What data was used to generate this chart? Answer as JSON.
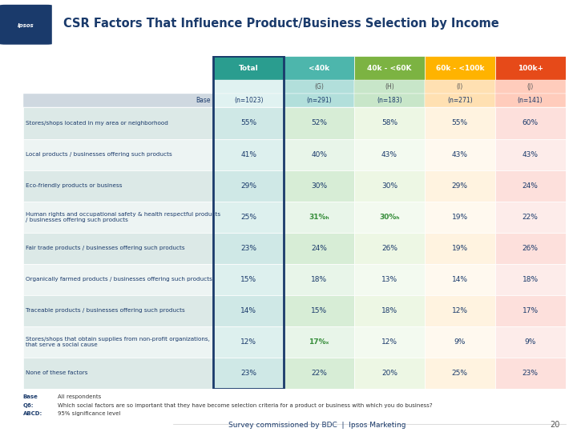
{
  "title": "CSR Factors That Influence Product/Business Selection by Income",
  "columns": [
    "Total",
    "<40k",
    "40k - <60K",
    "60k - <100k",
    "100k+"
  ],
  "col_letters": [
    "",
    "(G)",
    "(H)",
    "(I)",
    "(J)"
  ],
  "base_row": [
    "Base",
    "(n=1023)",
    "(n=291)",
    "(n=183)",
    "(n=271)",
    "(n=141)"
  ],
  "header_colors": [
    "#2a9d8f",
    "#4db6ac",
    "#8bc34a",
    "#ffb74d",
    "#e57373"
  ],
  "rows": [
    {
      "label": "Stores/shops located in my area or neighborhood",
      "values": [
        "55%",
        "52%",
        "58%",
        "55%",
        "60%"
      ],
      "special": []
    },
    {
      "label": "Local products / businesses offering such products",
      "values": [
        "41%",
        "40%",
        "43%",
        "43%",
        "43%"
      ],
      "special": []
    },
    {
      "label": "Eco-friendly products or business",
      "values": [
        "29%",
        "30%",
        "30%",
        "29%",
        "24%"
      ],
      "special": []
    },
    {
      "label": "Human rights and occupational safety & health respectful products\n/ businesses offering such products",
      "values": [
        "25%",
        "31%ₕ",
        "30%ₕ",
        "19%",
        "22%"
      ],
      "special": [
        1,
        2
      ]
    },
    {
      "label": "Fair trade products / businesses offering such products",
      "values": [
        "23%",
        "24%",
        "26%",
        "19%",
        "26%"
      ],
      "special": []
    },
    {
      "label": "Organically farmed products / businesses offering such products",
      "values": [
        "15%",
        "18%",
        "13%",
        "14%",
        "18%"
      ],
      "special": []
    },
    {
      "label": "Traceable products / businesses offering such products",
      "values": [
        "14%",
        "15%",
        "18%",
        "12%",
        "17%"
      ],
      "special": []
    },
    {
      "label": "Stores/shops that obtain supplies from non-profit organizations,\nthat serve a social cause",
      "values": [
        "12%",
        "17%ₓ",
        "12%",
        "9%",
        "9%"
      ],
      "special": [
        1
      ]
    },
    {
      "label": "None of these factors",
      "values": [
        "23%",
        "22%",
        "20%",
        "25%",
        "23%"
      ],
      "special": []
    }
  ],
  "row_bg_colors_even": [
    "#dce9e8",
    "#dce9e8"
  ],
  "row_bg_colors_odd": [
    "#f0f4f4",
    "#f0f4f4"
  ],
  "col_bg_colors": [
    "#e8f4f3",
    "#e8f5e9",
    "#fff3e0",
    "#fce4ec"
  ],
  "special_color": "#4caf50",
  "footer_text": "Survey commissioned by BDC  |  Ipsos Marketing",
  "page_num": "20",
  "footnote1": "Base",
  "footnote2": "Q6:",
  "footnote3": "ABCD:",
  "footnote1_text": "All respondents",
  "footnote2_text": "Which social factors are so important that they have become selection criteria for a product or business with which you do business?",
  "footnote3_text": "95% significance level"
}
